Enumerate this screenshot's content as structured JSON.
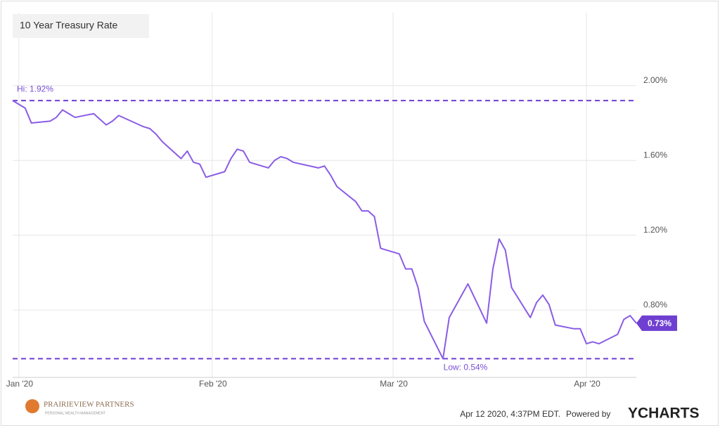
{
  "chart_data": {
    "type": "line",
    "title": "10 Year Treasury Rate",
    "x": [
      -1,
      1,
      2,
      5,
      6,
      7,
      8,
      9,
      12,
      13,
      14,
      15,
      16,
      20,
      21,
      22,
      23,
      26,
      27,
      28,
      29,
      30,
      33,
      34,
      35,
      36,
      37,
      40,
      41,
      42,
      43,
      44,
      48,
      49,
      50,
      51,
      54,
      55,
      56,
      57,
      58,
      61,
      62,
      63,
      64,
      65,
      68,
      69,
      70,
      71,
      72,
      75,
      76,
      77,
      78,
      79,
      82,
      83,
      84,
      85,
      86,
      89,
      90,
      91,
      92,
      93,
      96,
      97,
      98,
      99
    ],
    "series": [
      {
        "name": "10 Year Treasury Rate",
        "color": "#8a5ce6",
        "values": [
          1.92,
          1.88,
          1.8,
          1.81,
          1.83,
          1.87,
          1.85,
          1.83,
          1.85,
          1.82,
          1.79,
          1.81,
          1.84,
          1.78,
          1.77,
          1.74,
          1.7,
          1.61,
          1.65,
          1.59,
          1.58,
          1.51,
          1.54,
          1.61,
          1.66,
          1.65,
          1.59,
          1.56,
          1.6,
          1.62,
          1.61,
          1.59,
          1.56,
          1.57,
          1.52,
          1.46,
          1.38,
          1.33,
          1.33,
          1.3,
          1.13,
          1.1,
          1.02,
          1.02,
          0.92,
          0.74,
          0.54,
          0.76,
          0.82,
          0.88,
          0.94,
          0.73,
          1.02,
          1.18,
          1.12,
          0.92,
          0.76,
          0.84,
          0.88,
          0.83,
          0.72,
          0.7,
          0.7,
          0.62,
          0.63,
          0.62,
          0.67,
          0.75,
          0.77,
          0.73
        ]
      }
    ],
    "xlim": [
      -1,
      99
    ],
    "xticks": [
      {
        "value": 0,
        "label": "Jan '20"
      },
      {
        "value": 31,
        "label": "Feb '20"
      },
      {
        "value": 60,
        "label": "Mar '20"
      },
      {
        "value": 91,
        "label": "Apr '20"
      }
    ],
    "ylim": [
      0.44,
      2.39
    ],
    "yticks": [
      {
        "value": 0.8,
        "label": "0.80%"
      },
      {
        "value": 1.2,
        "label": "1.20%"
      },
      {
        "value": 1.6,
        "label": "1.60%"
      },
      {
        "value": 2.0,
        "label": "2.00%"
      }
    ],
    "grid": true,
    "annotations": [
      {
        "value": 1.92,
        "label": "Hi: 1.92%"
      },
      {
        "value": 0.54,
        "label": "Low: 0.54%"
      }
    ],
    "last_label": {
      "value": 0.73,
      "label": "0.73%"
    }
  },
  "footer": {
    "logo": "PRAIRIEVIEW PARTNERS",
    "logo_sub": "PERSONAL WEALTH MANAGEMENT",
    "timestamp": "Apr 12 2020, 4:37PM EDT.",
    "powered_by": "Powered by",
    "brand": "YCHARTS"
  }
}
